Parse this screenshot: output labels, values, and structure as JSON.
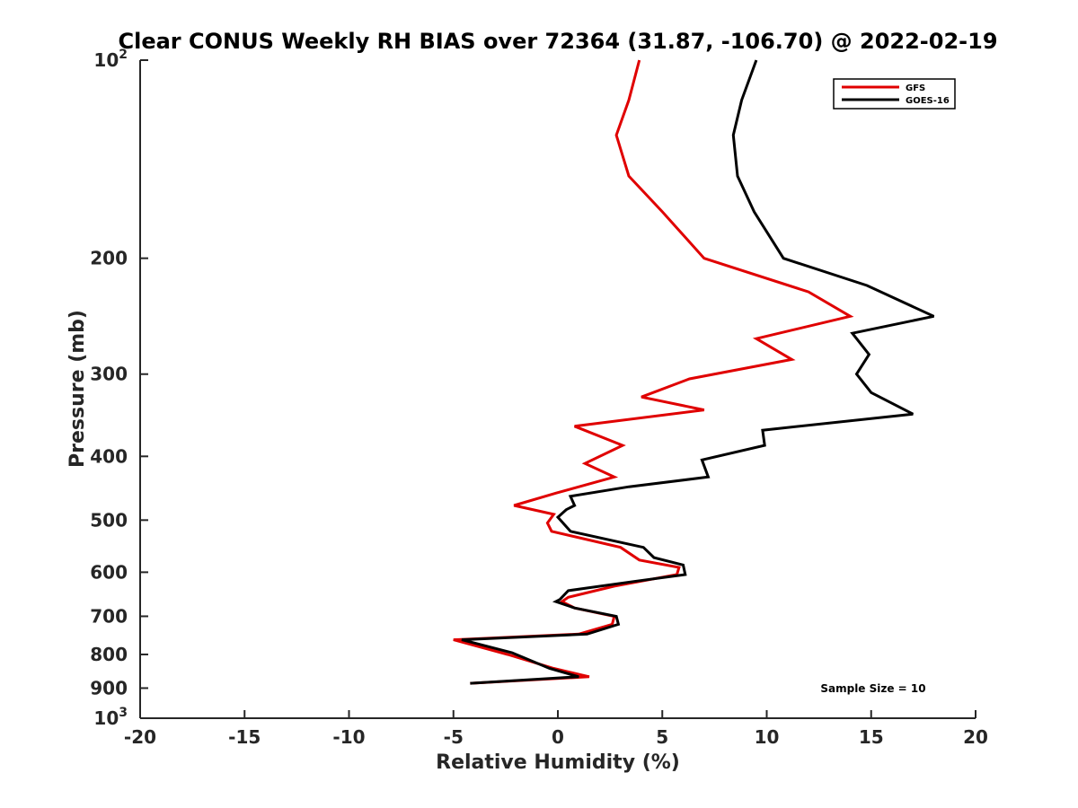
{
  "chart_data": {
    "type": "line",
    "title": "Clear CONUS Weekly RH BIAS over 72364 (31.87, -106.70) @ 2022-02-19",
    "xlabel": "Relative Humidity (%)",
    "ylabel": "Pressure (mb)",
    "xlim": [
      -20,
      20
    ],
    "ylim": [
      100,
      1000
    ],
    "y_scale": "log",
    "y_reversed": true,
    "x_ticks": [
      "-20",
      "-15",
      "-10",
      "-5",
      "0",
      "5",
      "10",
      "15",
      "20"
    ],
    "y_tick_base": "10",
    "y_tick_exponents": [
      "2",
      "3"
    ],
    "y_ticks_plain": [
      "200",
      "300",
      "400",
      "500",
      "600",
      "700",
      "800",
      "900"
    ],
    "legend_position": "top-right",
    "grid": false,
    "annotation": "Sample Size = 10",
    "series": [
      {
        "name": "GFS",
        "color": "#e00000",
        "points": [
          [
            3.9,
            100
          ],
          [
            3.4,
            115
          ],
          [
            2.8,
            130
          ],
          [
            3.4,
            150
          ],
          [
            5.0,
            170
          ],
          [
            7.0,
            200
          ],
          [
            12.0,
            225
          ],
          [
            14.0,
            245
          ],
          [
            9.5,
            265
          ],
          [
            11.2,
            285
          ],
          [
            6.3,
            305
          ],
          [
            4.0,
            325
          ],
          [
            7.0,
            340
          ],
          [
            0.8,
            360
          ],
          [
            3.1,
            385
          ],
          [
            1.3,
            410
          ],
          [
            2.7,
            430
          ],
          [
            -0.1,
            455
          ],
          [
            -2.1,
            475
          ],
          [
            -0.2,
            490
          ],
          [
            -0.5,
            505
          ],
          [
            -0.3,
            520
          ],
          [
            3.0,
            550
          ],
          [
            3.9,
            575
          ],
          [
            5.8,
            590
          ],
          [
            5.7,
            605
          ],
          [
            2.7,
            630
          ],
          [
            0.5,
            655
          ],
          [
            0.2,
            665
          ],
          [
            0.8,
            680
          ],
          [
            2.7,
            700
          ],
          [
            2.6,
            720
          ],
          [
            1.0,
            745
          ],
          [
            -5.0,
            760
          ],
          [
            -2.4,
            800
          ],
          [
            -0.2,
            840
          ],
          [
            1.5,
            865
          ],
          [
            -4.2,
            885
          ]
        ]
      },
      {
        "name": "GOES-16",
        "color": "#000000",
        "points": [
          [
            9.5,
            100
          ],
          [
            8.8,
            115
          ],
          [
            8.4,
            130
          ],
          [
            8.6,
            150
          ],
          [
            9.4,
            170
          ],
          [
            10.8,
            200
          ],
          [
            14.8,
            220
          ],
          [
            18.0,
            245
          ],
          [
            14.1,
            260
          ],
          [
            14.9,
            280
          ],
          [
            14.3,
            300
          ],
          [
            15.0,
            320
          ],
          [
            17.0,
            345
          ],
          [
            9.8,
            365
          ],
          [
            9.9,
            385
          ],
          [
            6.9,
            405
          ],
          [
            7.2,
            430
          ],
          [
            3.4,
            445
          ],
          [
            0.6,
            460
          ],
          [
            0.8,
            475
          ],
          [
            0.4,
            482
          ],
          [
            0.0,
            495
          ],
          [
            0.6,
            520
          ],
          [
            4.1,
            550
          ],
          [
            4.6,
            570
          ],
          [
            6.0,
            585
          ],
          [
            6.1,
            605
          ],
          [
            3.6,
            620
          ],
          [
            0.5,
            640
          ],
          [
            0.1,
            660
          ],
          [
            -0.1,
            665
          ],
          [
            0.8,
            680
          ],
          [
            2.8,
            700
          ],
          [
            2.9,
            720
          ],
          [
            1.4,
            745
          ],
          [
            -4.6,
            760
          ],
          [
            -2.2,
            795
          ],
          [
            -0.4,
            840
          ],
          [
            1.0,
            865
          ],
          [
            -4.2,
            885
          ]
        ]
      }
    ]
  }
}
